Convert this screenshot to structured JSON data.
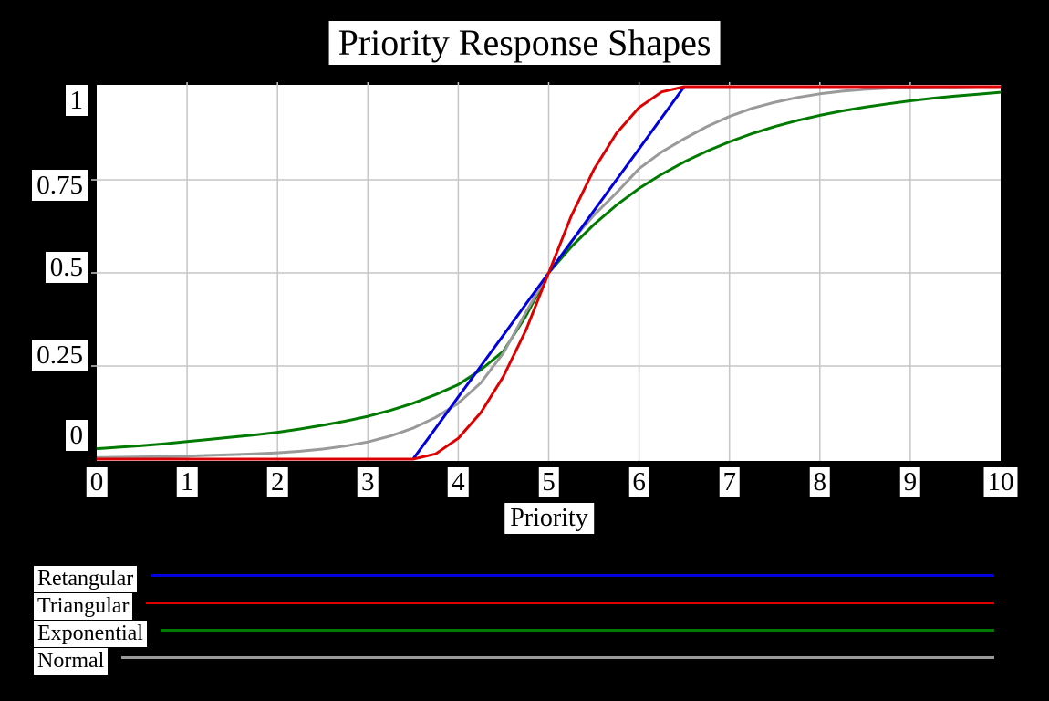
{
  "title": "Priority Response Shapes",
  "axes": {
    "x_label": "Priority",
    "x_ticks": [
      "0",
      "1",
      "2",
      "3",
      "4",
      "5",
      "6",
      "7",
      "8",
      "9",
      "10"
    ],
    "y_ticks": [
      "1",
      "0.75",
      "0.5",
      "0.25",
      "0"
    ]
  },
  "colors": {
    "background": "#000000",
    "plot_background": "#ffffff",
    "gridline": "#c6c6c6",
    "label_background": "#ffffff",
    "label_text": "#000000",
    "retangular": "#0000dd",
    "triangular": "#dd0000",
    "exponential": "#007a00",
    "normal": "#9a9a9a"
  },
  "legend": [
    {
      "label": "Retangular",
      "color": "#0000dd"
    },
    {
      "label": "Triangular",
      "color": "#dd0000"
    },
    {
      "label": "Exponential",
      "color": "#007a00"
    },
    {
      "label": "Normal",
      "color": "#9a9a9a"
    }
  ],
  "chart_data": {
    "type": "line",
    "title": "Priority Response Shapes",
    "xlabel": "Priority",
    "ylabel": "",
    "xlim": [
      0,
      10
    ],
    "ylim": [
      0,
      1
    ],
    "x_tick_values": [
      0,
      1,
      2,
      3,
      4,
      5,
      6,
      7,
      8,
      9,
      10
    ],
    "y_tick_values": [
      1,
      0.75,
      0.5,
      0.25,
      0
    ],
    "grid": true,
    "legend_position": "bottom-left",
    "x": [
      0,
      0.25,
      0.5,
      0.75,
      1,
      1.25,
      1.5,
      1.75,
      2,
      2.25,
      2.5,
      2.75,
      3,
      3.25,
      3.5,
      3.75,
      4,
      4.25,
      4.5,
      4.75,
      5,
      5.25,
      5.5,
      5.75,
      6,
      6.25,
      6.5,
      6.75,
      7,
      7.25,
      7.5,
      7.75,
      8,
      8.25,
      8.5,
      8.75,
      9,
      9.25,
      9.5,
      9.75,
      10
    ],
    "series": [
      {
        "name": "Retangular",
        "color": "#0000dd",
        "values": [
          0,
          0,
          0,
          0,
          0,
          0,
          0,
          0,
          0,
          0,
          0,
          0,
          0,
          0,
          0,
          0.083,
          0.167,
          0.25,
          0.333,
          0.417,
          0.5,
          0.583,
          0.667,
          0.75,
          0.833,
          0.917,
          1,
          1,
          1,
          1,
          1,
          1,
          1,
          1,
          1,
          1,
          1,
          1,
          1,
          1,
          1
        ]
      },
      {
        "name": "Triangular",
        "color": "#dd0000",
        "values": [
          0,
          0,
          0,
          0,
          0,
          0,
          0,
          0,
          0,
          0,
          0,
          0,
          0,
          0,
          0,
          0.014,
          0.056,
          0.125,
          0.222,
          0.347,
          0.5,
          0.653,
          0.778,
          0.875,
          0.944,
          0.986,
          1,
          1,
          1,
          1,
          1,
          1,
          1,
          1,
          1,
          1,
          1,
          1,
          1,
          1,
          1
        ]
      },
      {
        "name": "Exponential",
        "color": "#007a00",
        "values": [
          0.028,
          0.032,
          0.036,
          0.041,
          0.047,
          0.053,
          0.059,
          0.065,
          0.072,
          0.081,
          0.091,
          0.102,
          0.115,
          0.131,
          0.15,
          0.173,
          0.2,
          0.24,
          0.29,
          0.385,
          0.5,
          0.57,
          0.63,
          0.682,
          0.727,
          0.765,
          0.798,
          0.827,
          0.852,
          0.874,
          0.893,
          0.909,
          0.923,
          0.935,
          0.945,
          0.954,
          0.962,
          0.969,
          0.975,
          0.98,
          0.985
        ]
      },
      {
        "name": "Normal",
        "color": "#9a9a9a",
        "values": [
          0.004,
          0.005,
          0.006,
          0.007,
          0.008,
          0.01,
          0.012,
          0.014,
          0.017,
          0.021,
          0.027,
          0.035,
          0.046,
          0.062,
          0.083,
          0.112,
          0.15,
          0.205,
          0.285,
          0.395,
          0.5,
          0.585,
          0.655,
          0.715,
          0.78,
          0.825,
          0.86,
          0.893,
          0.92,
          0.942,
          0.958,
          0.971,
          0.981,
          0.988,
          0.993,
          0.996,
          0.998,
          0.999,
          0.999,
          1,
          1
        ]
      }
    ]
  }
}
